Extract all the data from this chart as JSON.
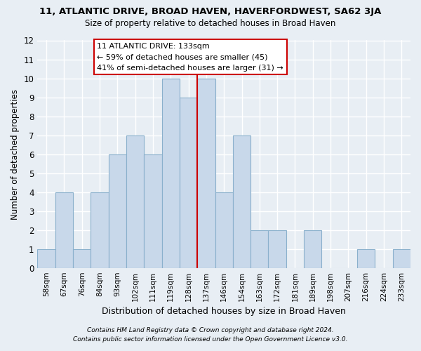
{
  "title": "11, ATLANTIC DRIVE, BROAD HAVEN, HAVERFORDWEST, SA62 3JA",
  "subtitle": "Size of property relative to detached houses in Broad Haven",
  "xlabel": "Distribution of detached houses by size in Broad Haven",
  "ylabel": "Number of detached properties",
  "categories": [
    "58sqm",
    "67sqm",
    "76sqm",
    "84sqm",
    "93sqm",
    "102sqm",
    "111sqm",
    "119sqm",
    "128sqm",
    "137sqm",
    "146sqm",
    "154sqm",
    "163sqm",
    "172sqm",
    "181sqm",
    "189sqm",
    "198sqm",
    "207sqm",
    "216sqm",
    "224sqm",
    "233sqm"
  ],
  "values": [
    1,
    4,
    1,
    4,
    6,
    7,
    6,
    10,
    9,
    10,
    4,
    7,
    2,
    2,
    0,
    2,
    0,
    0,
    1,
    0,
    1
  ],
  "bar_color": "#c8d8ea",
  "bar_edge_color": "#8ab0cc",
  "highlight_bar_index": 8,
  "highlight_color": "#cc0000",
  "annotation_title": "11 ATLANTIC DRIVE: 133sqm",
  "annotation_line1": "← 59% of detached houses are smaller (45)",
  "annotation_line2": "41% of semi-detached houses are larger (31) →",
  "annotation_box_color": "#ffffff",
  "annotation_box_edge": "#cc0000",
  "ylim": [
    0,
    12
  ],
  "yticks": [
    0,
    1,
    2,
    3,
    4,
    5,
    6,
    7,
    8,
    9,
    10,
    11,
    12
  ],
  "footnote1": "Contains HM Land Registry data © Crown copyright and database right 2024.",
  "footnote2": "Contains public sector information licensed under the Open Government Licence v3.0.",
  "bg_color": "#e8eef4",
  "grid_color": "#ffffff",
  "figsize": [
    6.0,
    5.0
  ],
  "dpi": 100
}
